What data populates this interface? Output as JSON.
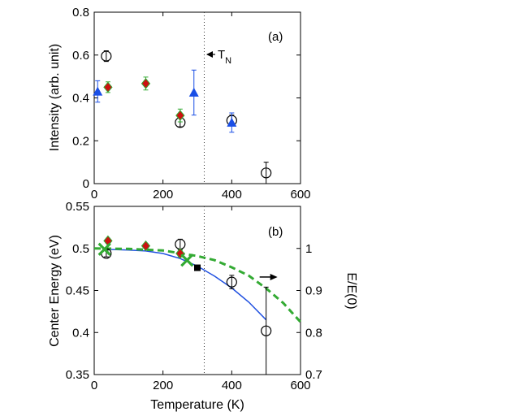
{
  "chart_data": [
    {
      "type": "scatter",
      "panel_label": "(a)",
      "xlabel": "",
      "ylabel": "Intensity (arb. unit)",
      "xlim": [
        0,
        600
      ],
      "ylim": [
        0,
        0.8
      ],
      "xticks": [
        "0",
        "200",
        "400",
        "600"
      ],
      "yticks": [
        "0",
        "0.2",
        "0.4",
        "0.6",
        "0.8"
      ],
      "vline_x": 320,
      "annotation": {
        "text": "T",
        "subscript": "N",
        "x": 325,
        "y": 0.605
      },
      "series": [
        {
          "name": "open circles",
          "marker": "circle",
          "color": "#000000",
          "x": [
            35,
            250,
            400,
            500
          ],
          "y": [
            0.595,
            0.285,
            0.295,
            0.05
          ],
          "err": [
            0.025,
            0.02,
            0.025,
            0.05
          ]
        },
        {
          "name": "red diamonds",
          "marker": "diamond",
          "color": "#cc1111",
          "errcolor": "#33aa33",
          "x": [
            40,
            150,
            250
          ],
          "y": [
            0.45,
            0.467,
            0.318
          ],
          "err": [
            0.025,
            0.03,
            0.03
          ]
        },
        {
          "name": "blue triangles",
          "marker": "triangle",
          "color": "#1a4fe6",
          "x": [
            10,
            290,
            400
          ],
          "y": [
            0.43,
            0.425,
            0.285
          ],
          "err": [
            0.05,
            0.105,
            0.045
          ]
        }
      ]
    },
    {
      "type": "line",
      "panel_label": "(b)",
      "xlabel": "Temperature (K)",
      "ylabel": "Center Energy (eV)",
      "y2label": "E/E(0)",
      "xlim": [
        0,
        600
      ],
      "ylim": [
        0.35,
        0.55
      ],
      "y2lim": [
        0.7,
        1.1
      ],
      "xticks": [
        "0",
        "200",
        "400",
        "600"
      ],
      "yticks": [
        "0.35",
        "0.4",
        "0.45",
        "0.5",
        "0.55"
      ],
      "y2ticks": [
        "0.7",
        "0.8",
        "0.9",
        "1"
      ],
      "vline_x": 320,
      "series": [
        {
          "name": "open circles",
          "marker": "circle",
          "color": "#000000",
          "x": [
            35,
            250,
            400,
            500
          ],
          "y": [
            0.494,
            0.505,
            0.46,
            0.402
          ],
          "err": [
            0.004,
            0.006,
            0.008,
            0.052
          ]
        },
        {
          "name": "red diamonds",
          "marker": "diamond",
          "color": "#cc1111",
          "errcolor": "#33aa33",
          "x": [
            40,
            150,
            250
          ],
          "y": [
            0.509,
            0.503,
            0.494
          ],
          "err": [
            0.003,
            0.003,
            0.004
          ]
        },
        {
          "name": "green crosses",
          "marker": "x",
          "color": "#33aa33",
          "x": [
            30,
            270
          ],
          "y": [
            0.499,
            0.486
          ]
        },
        {
          "name": "black square",
          "marker": "square",
          "color": "#000000",
          "x": [
            300
          ],
          "y": [
            0.477
          ]
        },
        {
          "name": "blue fit curve",
          "style": "solid",
          "color": "#2050e0",
          "axis": "left",
          "x": [
            30,
            100,
            150,
            200,
            250,
            300,
            350,
            400,
            450,
            500
          ],
          "y": [
            0.499,
            0.498,
            0.497,
            0.494,
            0.488,
            0.479,
            0.467,
            0.453,
            0.436,
            0.415
          ]
        },
        {
          "name": "green dashed E/E(0)",
          "style": "dashed",
          "color": "#33aa33",
          "axis": "right",
          "x": [
            0,
            100,
            200,
            300,
            350,
            400,
            450,
            500,
            550,
            600
          ],
          "y": [
            1.0,
            0.999,
            0.995,
            0.982,
            0.972,
            0.955,
            0.935,
            0.905,
            0.87,
            0.825
          ]
        }
      ],
      "arrow": {
        "x": 500,
        "y": 0.466,
        "direction": "right",
        "points_to": "E/E(0)"
      }
    }
  ]
}
